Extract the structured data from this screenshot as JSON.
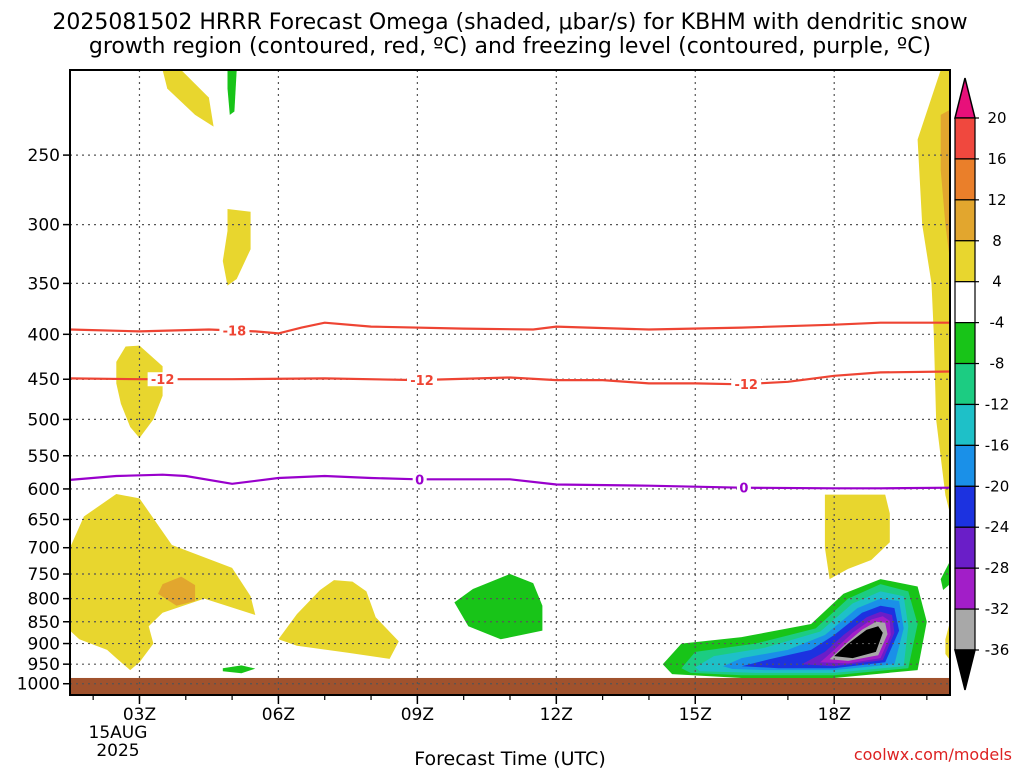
{
  "chart_data": {
    "type": "heatmap",
    "title_line1": "2025081502 HRRR Forecast Omega (shaded, μbar/s) for KBHM with dendritic snow",
    "title_line2": "growth region (contoured, red, ºC) and freezing level (contoured, purple, ºC)",
    "xlabel": "Forecast Time (UTC)",
    "credit": "coolwx.com/models",
    "x_ticks": [
      "03Z",
      "06Z",
      "09Z",
      "12Z",
      "15Z",
      "18Z"
    ],
    "x_tick_values": [
      3,
      6,
      9,
      12,
      15,
      18
    ],
    "x_date_line1": "15AUG",
    "x_date_line2": "2025",
    "xlim": [
      1.5,
      20.5
    ],
    "y_ticks": [
      "250",
      "300",
      "350",
      "400",
      "450",
      "500",
      "550",
      "600",
      "650",
      "700",
      "750",
      "800",
      "850",
      "900",
      "950",
      "1000"
    ],
    "y_tick_values": [
      250,
      300,
      350,
      400,
      450,
      500,
      550,
      600,
      650,
      700,
      750,
      800,
      850,
      900,
      950,
      1000
    ],
    "ylim": [
      200,
      1030
    ],
    "y_scale": "log",
    "grid": true,
    "colorbar": {
      "labels": [
        "20",
        "16",
        "12",
        "8",
        "4",
        "-4",
        "-8",
        "-12",
        "-16",
        "-20",
        "-24",
        "-28",
        "-32",
        "-36"
      ],
      "bins": [
        {
          "range": ">20",
          "color": "#e8107a"
        },
        {
          "range": "16 to 20",
          "color": "#f0483e"
        },
        {
          "range": "12 to 16",
          "color": "#ea7f2a"
        },
        {
          "range": "8 to 12",
          "color": "#e2a62e"
        },
        {
          "range": "4 to 8",
          "color": "#e8d62e"
        },
        {
          "range": "-4 to 4",
          "color": "#ffffff"
        },
        {
          "range": "-8 to -4",
          "color": "#18c418"
        },
        {
          "range": "-12 to -8",
          "color": "#1ccc82"
        },
        {
          "range": "-16 to -12",
          "color": "#1ec0c8"
        },
        {
          "range": "-20 to -16",
          "color": "#1a90e8"
        },
        {
          "range": "-24 to -20",
          "color": "#1c32e0"
        },
        {
          "range": "-28 to -24",
          "color": "#6a1ec8"
        },
        {
          "range": "-32 to -28",
          "color": "#a21ec8"
        },
        {
          "range": "-36 to -32",
          "color": "#a8a8a8"
        },
        {
          "range": "<-36",
          "color": "#000000"
        }
      ]
    },
    "ground_color": "#a0522d",
    "temperature_contours": [
      {
        "label": "-18",
        "color": "#ee4433",
        "label_at": [
          5.05
        ],
        "points": [
          [
            1.5,
            395
          ],
          [
            3,
            397
          ],
          [
            4.5,
            395
          ],
          [
            5.5,
            397
          ],
          [
            6,
            399
          ],
          [
            6.5,
            393
          ],
          [
            7,
            388
          ],
          [
            8,
            392
          ],
          [
            10,
            394
          ],
          [
            11.5,
            395
          ],
          [
            12,
            392
          ],
          [
            14,
            395
          ],
          [
            16,
            393
          ],
          [
            18,
            390
          ],
          [
            19,
            388
          ],
          [
            20.5,
            388
          ]
        ]
      },
      {
        "label": "-12",
        "color": "#ee4433",
        "label_at": [
          3.5,
          9.1,
          16.1
        ],
        "points": [
          [
            1.5,
            449
          ],
          [
            3,
            450
          ],
          [
            5,
            450
          ],
          [
            7,
            449
          ],
          [
            9,
            451
          ],
          [
            11,
            448
          ],
          [
            12,
            451
          ],
          [
            13,
            451
          ],
          [
            14,
            455
          ],
          [
            15,
            455
          ],
          [
            16,
            456
          ],
          [
            17,
            453
          ],
          [
            18,
            446
          ],
          [
            19,
            442
          ],
          [
            20.5,
            441
          ]
        ]
      },
      {
        "label": "0",
        "color": "#9900cc",
        "label_at": [
          9.05,
          16.05
        ],
        "points": [
          [
            1.5,
            586
          ],
          [
            2.5,
            580
          ],
          [
            3.5,
            578
          ],
          [
            4,
            580
          ],
          [
            5,
            592
          ],
          [
            6,
            583
          ],
          [
            7,
            580
          ],
          [
            8,
            583
          ],
          [
            9,
            585
          ],
          [
            11,
            585
          ],
          [
            12,
            593
          ],
          [
            14,
            595
          ],
          [
            16,
            598
          ],
          [
            18,
            599
          ],
          [
            19,
            599
          ],
          [
            20.5,
            598
          ]
        ]
      }
    ],
    "omega_regions": [
      {
        "level": "4 to 8",
        "color": "#e8d62e",
        "points": [
          [
            3.5,
            200
          ],
          [
            3.9,
            200
          ],
          [
            4.5,
            215
          ],
          [
            4.6,
            232
          ],
          [
            4.2,
            225
          ],
          [
            3.6,
            210
          ]
        ]
      },
      {
        "level": "-8 to -4",
        "color": "#18c418",
        "points": [
          [
            4.9,
            200
          ],
          [
            5.1,
            200
          ],
          [
            5.05,
            223
          ],
          [
            4.95,
            225
          ],
          [
            4.9,
            210
          ]
        ]
      },
      {
        "level": "4 to 8",
        "color": "#e8d62e",
        "points": [
          [
            4.9,
            288
          ],
          [
            5.4,
            290
          ],
          [
            5.4,
            320
          ],
          [
            5.1,
            346
          ],
          [
            4.9,
            352
          ],
          [
            4.8,
            330
          ],
          [
            4.9,
            305
          ]
        ]
      },
      {
        "level": "4 to 8",
        "color": "#e8d62e",
        "points": [
          [
            2.5,
            430
          ],
          [
            2.7,
            413
          ],
          [
            3,
            412
          ],
          [
            3.5,
            435
          ],
          [
            3.5,
            470
          ],
          [
            3.3,
            500
          ],
          [
            3,
            525
          ],
          [
            2.8,
            510
          ],
          [
            2.6,
            480
          ],
          [
            2.5,
            455
          ]
        ]
      },
      {
        "level": "4 to 8",
        "color": "#e8d62e",
        "points": [
          [
            1.5,
            700
          ],
          [
            1.8,
            645
          ],
          [
            2.5,
            608
          ],
          [
            3,
            615
          ],
          [
            3.7,
            695
          ],
          [
            5,
            738
          ],
          [
            5.4,
            795
          ],
          [
            5.5,
            835
          ],
          [
            4.4,
            800
          ],
          [
            3.5,
            830
          ],
          [
            3.2,
            860
          ],
          [
            3.3,
            900
          ],
          [
            3,
            945
          ],
          [
            2.8,
            965
          ],
          [
            2.5,
            935
          ],
          [
            2.3,
            915
          ],
          [
            1.7,
            890
          ],
          [
            1.5,
            870
          ]
        ]
      },
      {
        "level": "8 to 12",
        "color": "#e2a62e",
        "points": [
          [
            3.5,
            770
          ],
          [
            3.9,
            755
          ],
          [
            4.2,
            772
          ],
          [
            4.2,
            805
          ],
          [
            3.8,
            815
          ],
          [
            3.4,
            790
          ]
        ]
      },
      {
        "level": "4 to 8",
        "color": "#e8d62e",
        "points": [
          [
            6,
            890
          ],
          [
            6.4,
            833
          ],
          [
            6.9,
            782
          ],
          [
            7.2,
            762
          ],
          [
            7.6,
            765
          ],
          [
            7.9,
            785
          ],
          [
            8.1,
            840
          ],
          [
            8.6,
            895
          ],
          [
            8.4,
            937
          ],
          [
            7.5,
            922
          ],
          [
            6.4,
            905
          ]
        ]
      },
      {
        "level": "-8 to -4",
        "color": "#18c418",
        "points": [
          [
            4.8,
            960
          ],
          [
            5.2,
            953
          ],
          [
            5.5,
            961
          ],
          [
            5.2,
            973
          ],
          [
            4.8,
            968
          ]
        ]
      },
      {
        "level": "-8 to -4",
        "color": "#18c418",
        "points": [
          [
            9.8,
            808
          ],
          [
            10.2,
            780
          ],
          [
            11,
            750
          ],
          [
            11.5,
            768
          ],
          [
            11.7,
            815
          ],
          [
            11.7,
            870
          ],
          [
            10.8,
            890
          ],
          [
            10.1,
            860
          ]
        ]
      },
      {
        "level": "4 to 8",
        "color": "#e8d62e",
        "points": [
          [
            17.8,
            609
          ],
          [
            19.1,
            609
          ],
          [
            19.2,
            640
          ],
          [
            19.2,
            690
          ],
          [
            18.8,
            723
          ],
          [
            18.3,
            740
          ],
          [
            17.9,
            760
          ],
          [
            17.8,
            700
          ],
          [
            17.8,
            660
          ]
        ]
      },
      {
        "level": "4 to 8",
        "color": "#e8d62e",
        "points": [
          [
            20.5,
            200
          ],
          [
            20.5,
            640
          ],
          [
            20.4,
            610
          ],
          [
            20.2,
            500
          ],
          [
            20.15,
            400
          ],
          [
            20.1,
            350
          ],
          [
            19.9,
            300
          ],
          [
            19.8,
            240
          ],
          [
            20.3,
            200
          ]
        ]
      },
      {
        "level": "8 to 12",
        "color": "#e2a62e",
        "points": [
          [
            20.3,
            225
          ],
          [
            20.5,
            222
          ],
          [
            20.5,
            330
          ],
          [
            20.4,
            300
          ],
          [
            20.3,
            260
          ]
        ]
      },
      {
        "level": "-8 to -4",
        "color": "#18c418",
        "points": [
          [
            20.3,
            760
          ],
          [
            20.5,
            725
          ],
          [
            20.5,
            770
          ],
          [
            20.35,
            782
          ]
        ]
      },
      {
        "level": "4 to 8",
        "color": "#e8d62e",
        "points": [
          [
            20.4,
            890
          ],
          [
            20.5,
            850
          ],
          [
            20.5,
            940
          ],
          [
            20.4,
            925
          ]
        ]
      },
      {
        "level": "-8 to -4",
        "color": "#18c418",
        "points": [
          [
            14.3,
            950
          ],
          [
            14.7,
            900
          ],
          [
            16.0,
            885
          ],
          [
            17.5,
            855
          ],
          [
            18.2,
            790
          ],
          [
            19.0,
            760
          ],
          [
            19.8,
            775
          ],
          [
            20.0,
            850
          ],
          [
            19.8,
            965
          ],
          [
            18.0,
            985
          ],
          [
            16.0,
            985
          ],
          [
            14.5,
            975
          ]
        ]
      },
      {
        "level": "-12 to -8",
        "color": "#1ccc82",
        "points": [
          [
            14.7,
            960
          ],
          [
            15.0,
            920
          ],
          [
            16.3,
            900
          ],
          [
            17.6,
            865
          ],
          [
            18.3,
            800
          ],
          [
            19.0,
            770
          ],
          [
            19.6,
            785
          ],
          [
            19.8,
            855
          ],
          [
            19.6,
            960
          ],
          [
            18.0,
            978
          ],
          [
            16.0,
            978
          ],
          [
            14.9,
            972
          ]
        ]
      },
      {
        "level": "-16 to -12",
        "color": "#1ec0c8",
        "points": [
          [
            15.0,
            958
          ],
          [
            15.4,
            930
          ],
          [
            16.5,
            910
          ],
          [
            17.7,
            872
          ],
          [
            18.4,
            810
          ],
          [
            19.0,
            785
          ],
          [
            19.5,
            795
          ],
          [
            19.6,
            860
          ],
          [
            19.5,
            955
          ],
          [
            18.0,
            972
          ],
          [
            16.3,
            972
          ],
          [
            15.1,
            968
          ]
        ]
      },
      {
        "level": "-20 to -16",
        "color": "#1a90e8",
        "points": [
          [
            15.6,
            955
          ],
          [
            16.0,
            935
          ],
          [
            17.0,
            915
          ],
          [
            17.8,
            880
          ],
          [
            18.5,
            820
          ],
          [
            19.0,
            800
          ],
          [
            19.4,
            805
          ],
          [
            19.5,
            865
          ],
          [
            19.3,
            950
          ],
          [
            18.0,
            965
          ],
          [
            16.5,
            965
          ],
          [
            15.8,
            962
          ]
        ]
      },
      {
        "level": "-24 to -20",
        "color": "#1c32e0",
        "points": [
          [
            16.0,
            955
          ],
          [
            16.6,
            938
          ],
          [
            17.5,
            915
          ],
          [
            18.0,
            880
          ],
          [
            18.6,
            830
          ],
          [
            19.0,
            815
          ],
          [
            19.3,
            820
          ],
          [
            19.4,
            870
          ],
          [
            19.1,
            945
          ],
          [
            18.0,
            960
          ],
          [
            16.8,
            960
          ]
        ]
      },
      {
        "level": "-28 to -24",
        "color": "#6a1ec8",
        "points": [
          [
            17.3,
            950
          ],
          [
            17.8,
            920
          ],
          [
            18.2,
            880
          ],
          [
            18.7,
            840
          ],
          [
            19.0,
            828
          ],
          [
            19.25,
            835
          ],
          [
            19.3,
            875
          ],
          [
            19.05,
            940
          ],
          [
            18.0,
            955
          ]
        ]
      },
      {
        "level": "-32 to -28",
        "color": "#a21ec8",
        "points": [
          [
            17.7,
            945
          ],
          [
            18.0,
            915
          ],
          [
            18.4,
            875
          ],
          [
            18.8,
            845
          ],
          [
            19.05,
            838
          ],
          [
            19.2,
            848
          ],
          [
            19.22,
            880
          ],
          [
            19.0,
            935
          ],
          [
            18.3,
            948
          ]
        ]
      },
      {
        "level": "-36 to -32",
        "color": "#a8a8a8",
        "points": [
          [
            17.9,
            938
          ],
          [
            18.2,
            905
          ],
          [
            18.6,
            868
          ],
          [
            18.9,
            850
          ],
          [
            19.1,
            852
          ],
          [
            19.15,
            878
          ],
          [
            18.95,
            928
          ],
          [
            18.3,
            942
          ]
        ]
      },
      {
        "level": "<-36",
        "color": "#000000",
        "points": [
          [
            18.0,
            930
          ],
          [
            18.3,
            900
          ],
          [
            18.7,
            868
          ],
          [
            18.95,
            860
          ],
          [
            19.05,
            875
          ],
          [
            18.9,
            920
          ],
          [
            18.4,
            935
          ]
        ]
      }
    ]
  }
}
